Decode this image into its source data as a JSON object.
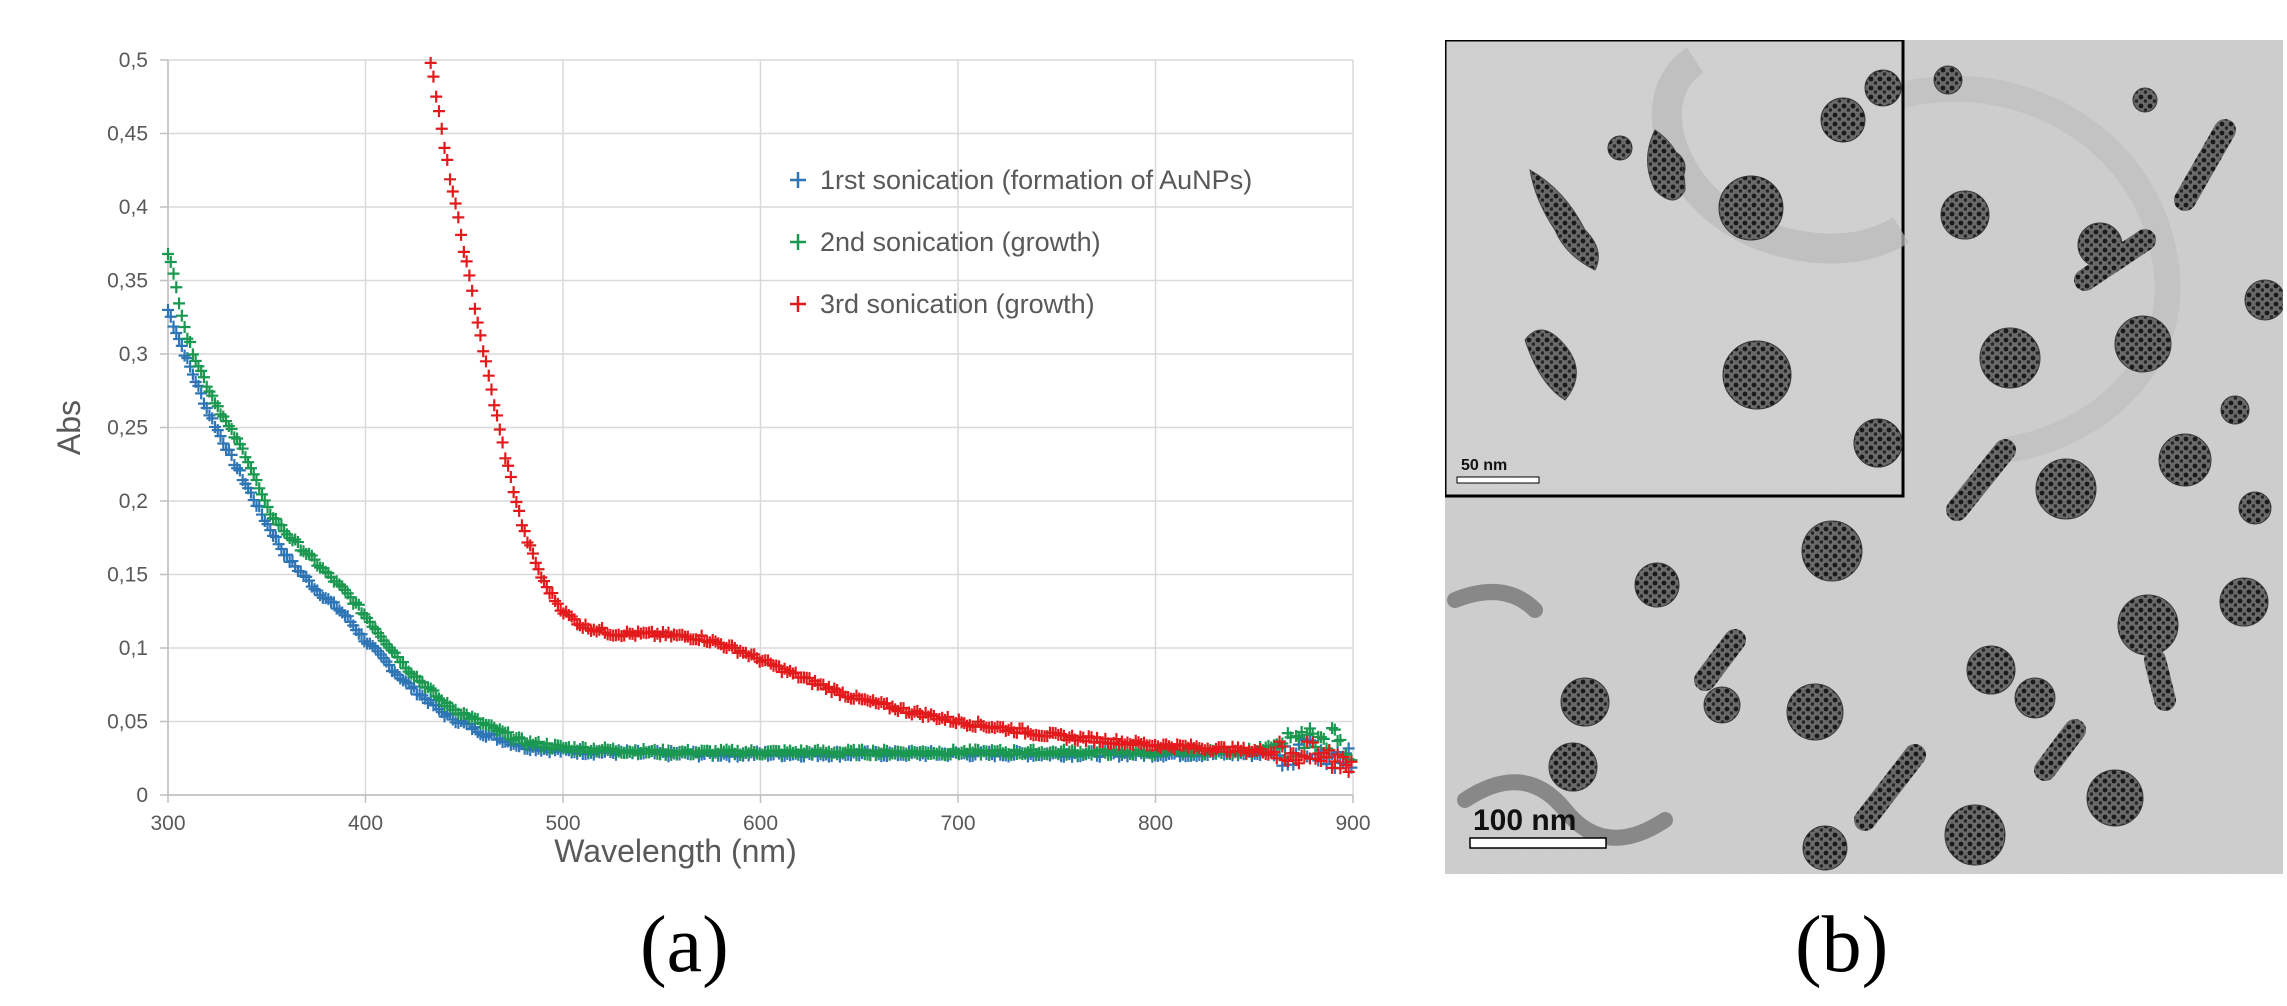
{
  "chart_data": {
    "type": "scatter",
    "xlabel": "Wavelength (nm)",
    "ylabel": "Abs",
    "xlim": [
      300,
      900
    ],
    "ylim": [
      0,
      0.5
    ],
    "x_ticks": [
      "300",
      "400",
      "500",
      "600",
      "700",
      "800",
      "900"
    ],
    "y_ticks": [
      "0",
      "0,05",
      "0,1",
      "0,15",
      "0,2",
      "0,25",
      "0,3",
      "0,35",
      "0,4",
      "0,45",
      "0,5"
    ],
    "grid": true,
    "legend_position": "top-right",
    "marker": "+",
    "series": [
      {
        "name": "1rst sonication (formation of AuNPs)",
        "color": "#2e75b6",
        "points": [
          [
            300,
            0.33
          ],
          [
            310,
            0.295
          ],
          [
            320,
            0.262
          ],
          [
            330,
            0.235
          ],
          [
            340,
            0.21
          ],
          [
            350,
            0.185
          ],
          [
            360,
            0.162
          ],
          [
            375,
            0.14
          ],
          [
            390,
            0.122
          ],
          [
            400,
            0.105
          ],
          [
            420,
            0.077
          ],
          [
            440,
            0.055
          ],
          [
            460,
            0.042
          ],
          [
            480,
            0.033
          ],
          [
            500,
            0.03
          ],
          [
            550,
            0.028
          ],
          [
            600,
            0.028
          ],
          [
            650,
            0.028
          ],
          [
            700,
            0.028
          ],
          [
            750,
            0.028
          ],
          [
            800,
            0.028
          ],
          [
            850,
            0.028
          ],
          [
            880,
            0.03
          ],
          [
            900,
            0.025
          ]
        ]
      },
      {
        "name": "2nd sonication (growth)",
        "color": "#1a9850",
        "points": [
          [
            300,
            0.37
          ],
          [
            310,
            0.31
          ],
          [
            320,
            0.278
          ],
          [
            330,
            0.252
          ],
          [
            340,
            0.23
          ],
          [
            350,
            0.195
          ],
          [
            360,
            0.178
          ],
          [
            375,
            0.158
          ],
          [
            390,
            0.138
          ],
          [
            400,
            0.122
          ],
          [
            420,
            0.088
          ],
          [
            440,
            0.062
          ],
          [
            460,
            0.048
          ],
          [
            480,
            0.036
          ],
          [
            500,
            0.032
          ],
          [
            550,
            0.029
          ],
          [
            600,
            0.029
          ],
          [
            650,
            0.029
          ],
          [
            700,
            0.029
          ],
          [
            750,
            0.029
          ],
          [
            800,
            0.029
          ],
          [
            850,
            0.03
          ],
          [
            890,
            0.04
          ],
          [
            900,
            0.028
          ]
        ]
      },
      {
        "name": "3rd sonication (growth)",
        "color": "#e31a1c",
        "points": [
          [
            433,
            0.5
          ],
          [
            440,
            0.44
          ],
          [
            450,
            0.37
          ],
          [
            460,
            0.3
          ],
          [
            470,
            0.235
          ],
          [
            480,
            0.18
          ],
          [
            490,
            0.145
          ],
          [
            500,
            0.125
          ],
          [
            510,
            0.115
          ],
          [
            525,
            0.11
          ],
          [
            550,
            0.109
          ],
          [
            570,
            0.107
          ],
          [
            590,
            0.098
          ],
          [
            610,
            0.086
          ],
          [
            630,
            0.075
          ],
          [
            650,
            0.065
          ],
          [
            675,
            0.057
          ],
          [
            700,
            0.05
          ],
          [
            725,
            0.045
          ],
          [
            750,
            0.04
          ],
          [
            775,
            0.037
          ],
          [
            800,
            0.034
          ],
          [
            825,
            0.032
          ],
          [
            850,
            0.03
          ],
          [
            875,
            0.028
          ],
          [
            900,
            0.022
          ]
        ]
      }
    ]
  },
  "figure": {
    "panel_a_label": "(a)",
    "panel_b_label": "(b)"
  },
  "tem_image": {
    "main_scale_bar": "100 nm",
    "inset_scale_bar": "50 nm"
  }
}
